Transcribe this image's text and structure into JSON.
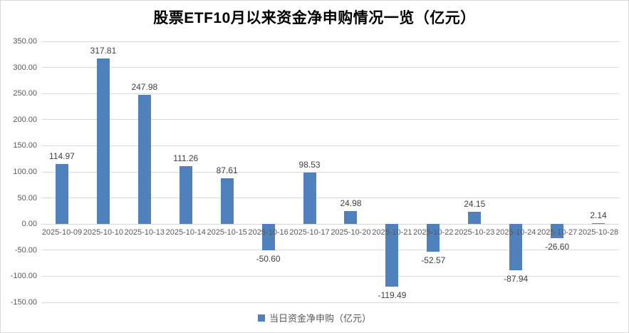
{
  "chart_data": {
    "type": "bar",
    "title": "股票ETF10月以来资金净申购情况一览（亿元）",
    "categories": [
      "2025-10-09",
      "2025-10-10",
      "2025-10-13",
      "2025-10-14",
      "2025-10-15",
      "2025-10-16",
      "2025-10-17",
      "2025-10-20",
      "2025-10-21",
      "2025-10-22",
      "2025-10-23",
      "2025-10-24",
      "2025-10-27",
      "2025-10-28"
    ],
    "series": [
      {
        "name": "当日资金净申购（亿元）",
        "values": [
          114.97,
          317.81,
          247.98,
          111.26,
          87.61,
          -50.6,
          98.53,
          24.98,
          -119.49,
          -52.57,
          24.15,
          -87.94,
          -26.6,
          2.14
        ]
      }
    ],
    "data_labels": [
      "114.97",
      "317.81",
      "247.98",
      "111.26",
      "87.61",
      "-50.60",
      "98.53",
      "24.98",
      "-119.49",
      "-52.57",
      "24.15",
      "-87.94",
      "-26.60",
      "2.14"
    ],
    "y_ticks": [
      350,
      300,
      250,
      200,
      150,
      100,
      50,
      0,
      -50,
      -100,
      -150
    ],
    "y_tick_labels": [
      "350.00",
      "300.00",
      "250.00",
      "200.00",
      "150.00",
      "100.00",
      "50.00",
      "0.00",
      "-50.00",
      "-100.00",
      "-150.00"
    ],
    "ylim": [
      -150,
      350
    ],
    "xlabel": "",
    "ylabel": "",
    "grid": true,
    "legend_position": "bottom",
    "colors": {
      "bar": "#4F81BD",
      "gridline": "#D9D9D9",
      "axis_labels": "#595959",
      "data_labels": "#3F3F3F",
      "title": "#000000",
      "background": "#FFFFFF",
      "frame_border": "#D9D9D9"
    }
  }
}
